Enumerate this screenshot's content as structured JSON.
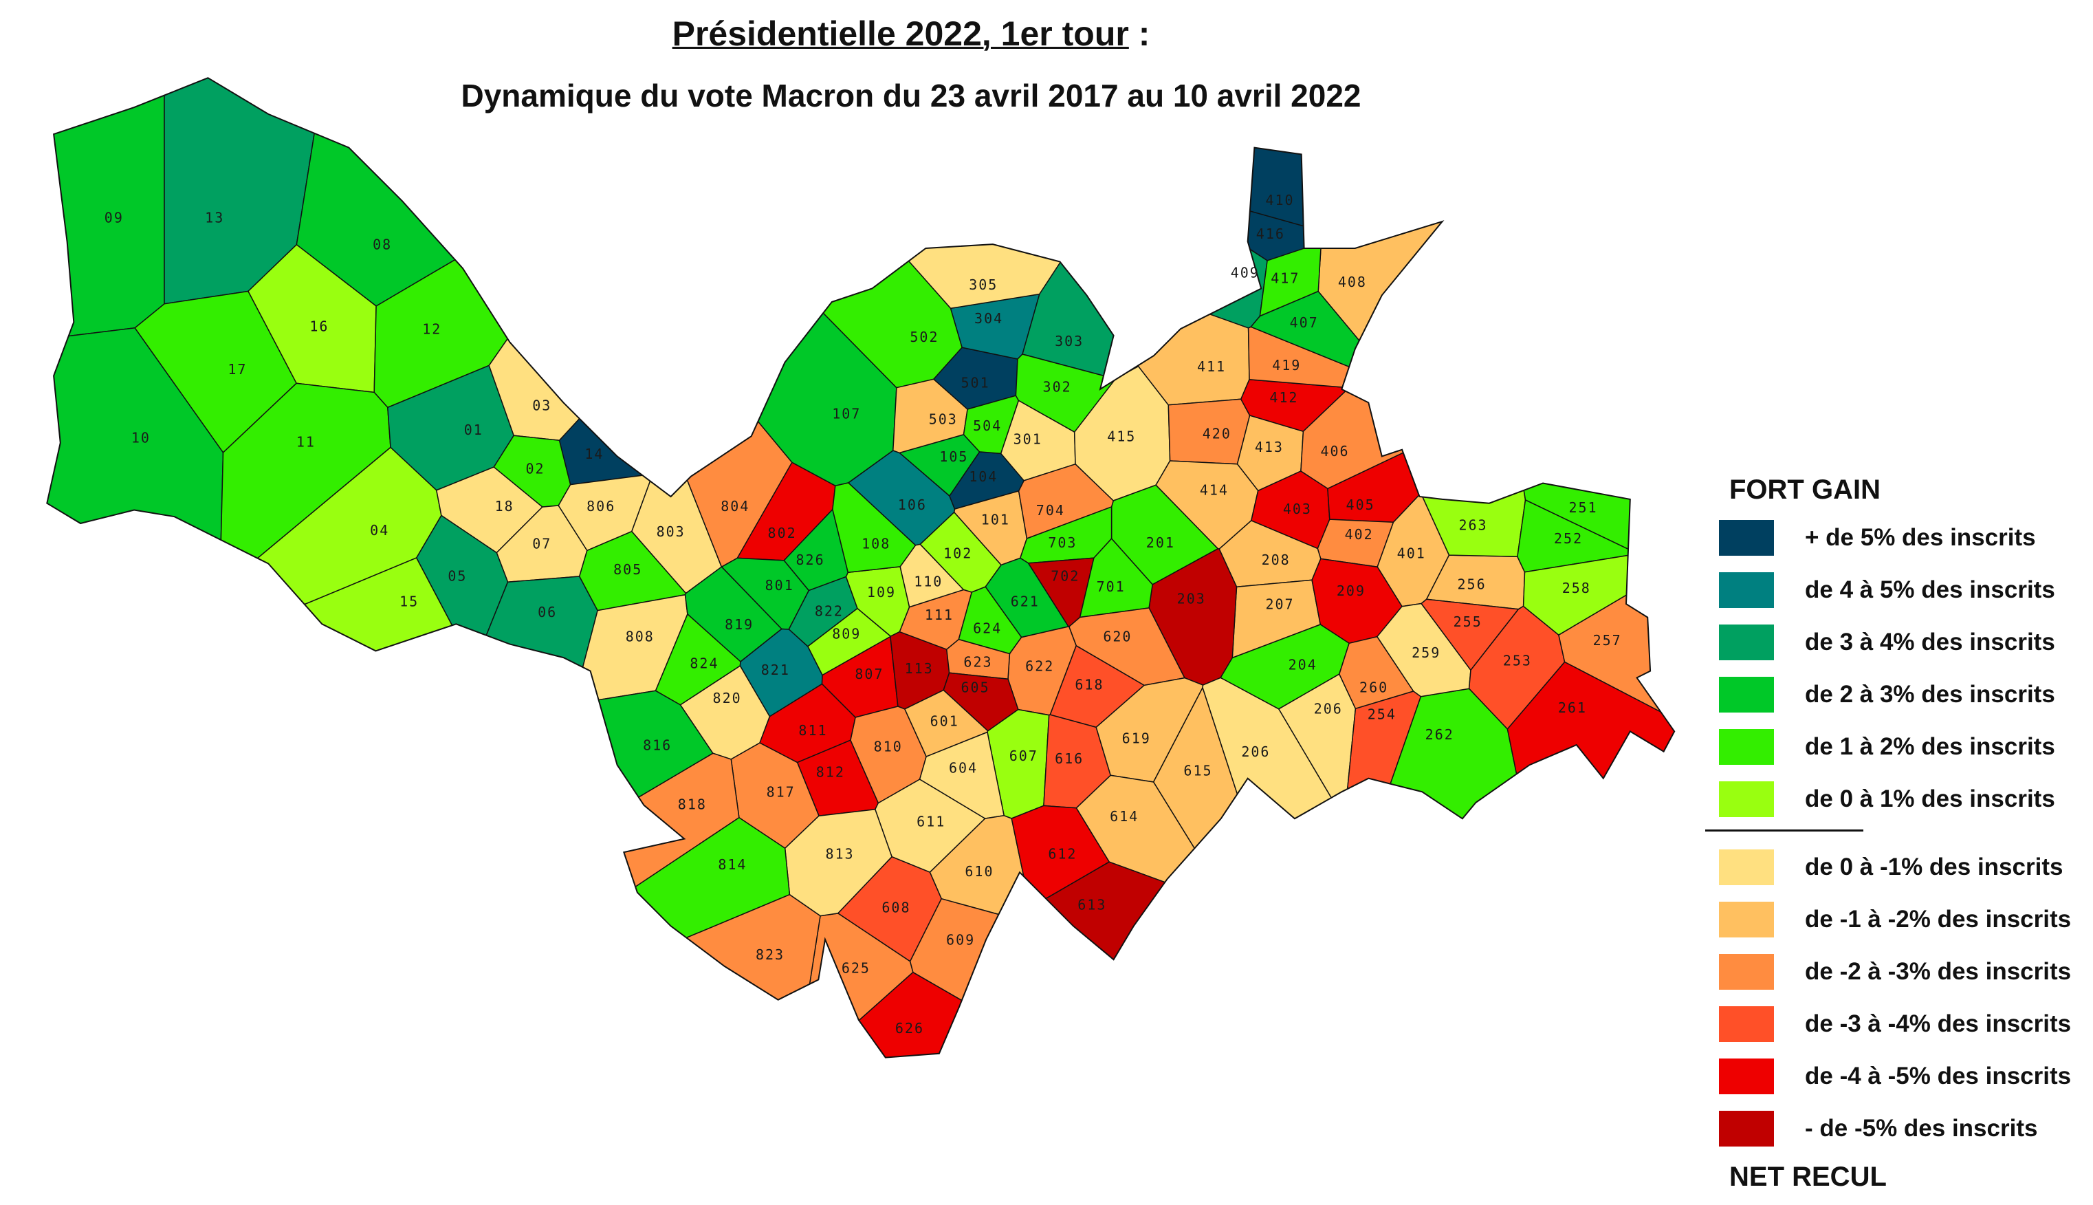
{
  "title": {
    "main": "Présidentielle 2022, 1er tour",
    "suffix": " :"
  },
  "subtitle": "Dynamique du vote Macron  du 23 avril 2017 au 10 avril 2022",
  "legend": {
    "top_heading": "FORT GAIN",
    "bottom_heading": "NET RECUL",
    "gain_classes": [
      {
        "key": "c5",
        "label": "+ de 5% des inscrits",
        "color": "#004060"
      },
      {
        "key": "c4",
        "label": "de 4 à 5% des inscrits",
        "color": "#008080"
      },
      {
        "key": "c3",
        "label": "de 3 à 4% des inscrits",
        "color": "#00a060"
      },
      {
        "key": "c2",
        "label": "de 2 à 3% des inscrits",
        "color": "#00c828"
      },
      {
        "key": "c1",
        "label": "de 1 à 2% des inscrits",
        "color": "#33ee00"
      },
      {
        "key": "c0",
        "label": "de 0 à 1% des inscrits",
        "color": "#99ff10"
      }
    ],
    "loss_classes": [
      {
        "key": "m0",
        "label": "de 0 à -1% des inscrits",
        "color": "#ffe080"
      },
      {
        "key": "m1",
        "label": "de -1 à -2% des inscrits",
        "color": "#ffc060"
      },
      {
        "key": "m2",
        "label": "de -2 à -3% des inscrits",
        "color": "#ff8c40"
      },
      {
        "key": "m3",
        "label": "de -3 à -4% des inscrits",
        "color": "#ff5028"
      },
      {
        "key": "m4",
        "label": "de -4 à -5% des inscrits",
        "color": "#ee0000"
      },
      {
        "key": "m5",
        "label": "- de -5% des inscrits",
        "color": "#c00000"
      }
    ]
  },
  "precincts": [
    {
      "id": "09",
      "c": "c2"
    },
    {
      "id": "13",
      "c": "c3"
    },
    {
      "id": "08",
      "c": "c2"
    },
    {
      "id": "16",
      "c": "c0"
    },
    {
      "id": "12",
      "c": "c1"
    },
    {
      "id": "17",
      "c": "c1"
    },
    {
      "id": "10",
      "c": "c2"
    },
    {
      "id": "11",
      "c": "c1"
    },
    {
      "id": "01",
      "c": "c3"
    },
    {
      "id": "03",
      "c": "m0"
    },
    {
      "id": "14",
      "c": "c5"
    },
    {
      "id": "02",
      "c": "c1"
    },
    {
      "id": "04",
      "c": "c0"
    },
    {
      "id": "18",
      "c": "m0"
    },
    {
      "id": "07",
      "c": "m0"
    },
    {
      "id": "806",
      "c": "m0"
    },
    {
      "id": "05",
      "c": "c3"
    },
    {
      "id": "06",
      "c": "c3"
    },
    {
      "id": "15",
      "c": "c0"
    },
    {
      "id": "803",
      "c": "m0"
    },
    {
      "id": "805",
      "c": "c1"
    },
    {
      "id": "808",
      "c": "m0"
    },
    {
      "id": "804",
      "c": "m2"
    },
    {
      "id": "802",
      "c": "m4"
    },
    {
      "id": "826",
      "c": "c2"
    },
    {
      "id": "801",
      "c": "c2"
    },
    {
      "id": "819",
      "c": "c2"
    },
    {
      "id": "822",
      "c": "c3"
    },
    {
      "id": "809",
      "c": "c0"
    },
    {
      "id": "824",
      "c": "c1"
    },
    {
      "id": "821",
      "c": "c4"
    },
    {
      "id": "820",
      "c": "m0"
    },
    {
      "id": "807",
      "c": "m4"
    },
    {
      "id": "113",
      "c": "m5"
    },
    {
      "id": "111",
      "c": "m2"
    },
    {
      "id": "110",
      "c": "m0"
    },
    {
      "id": "109",
      "c": "c0"
    },
    {
      "id": "108",
      "c": "c1"
    },
    {
      "id": "102",
      "c": "c0"
    },
    {
      "id": "106",
      "c": "c4"
    },
    {
      "id": "104",
      "c": "c5"
    },
    {
      "id": "105",
      "c": "c2"
    },
    {
      "id": "101",
      "c": "m1"
    },
    {
      "id": "107",
      "c": "c2"
    },
    {
      "id": "502",
      "c": "c1"
    },
    {
      "id": "503",
      "c": "m1"
    },
    {
      "id": "501",
      "c": "c5"
    },
    {
      "id": "504",
      "c": "c1"
    },
    {
      "id": "304",
      "c": "c4"
    },
    {
      "id": "305",
      "c": "m0"
    },
    {
      "id": "303",
      "c": "c3"
    },
    {
      "id": "302",
      "c": "c1"
    },
    {
      "id": "301",
      "c": "m0"
    },
    {
      "id": "415",
      "c": "m0"
    },
    {
      "id": "411",
      "c": "m1"
    },
    {
      "id": "420",
      "c": "m2"
    },
    {
      "id": "413",
      "c": "m1"
    },
    {
      "id": "414",
      "c": "m1"
    },
    {
      "id": "412",
      "c": "m4"
    },
    {
      "id": "419",
      "c": "m2"
    },
    {
      "id": "407",
      "c": "c2"
    },
    {
      "id": "408",
      "c": "m1"
    },
    {
      "id": "409",
      "c": "c3"
    },
    {
      "id": "417",
      "c": "c1"
    },
    {
      "id": "416",
      "c": "c5"
    },
    {
      "id": "410",
      "c": "c5"
    },
    {
      "id": "406",
      "c": "m2"
    },
    {
      "id": "403",
      "c": "m4"
    },
    {
      "id": "405",
      "c": "m4"
    },
    {
      "id": "402",
      "c": "m2"
    },
    {
      "id": "401",
      "c": "m1"
    },
    {
      "id": "208",
      "c": "m1"
    },
    {
      "id": "207",
      "c": "m1"
    },
    {
      "id": "209",
      "c": "m4"
    },
    {
      "id": "201",
      "c": "c1"
    },
    {
      "id": "203",
      "c": "m5"
    },
    {
      "id": "704",
      "c": "m2"
    },
    {
      "id": "703",
      "c": "c1"
    },
    {
      "id": "702",
      "c": "m5"
    },
    {
      "id": "701",
      "c": "c1"
    },
    {
      "id": "621",
      "c": "c2"
    },
    {
      "id": "624",
      "c": "c1"
    },
    {
      "id": "620",
      "c": "m2"
    },
    {
      "id": "622",
      "c": "m2"
    },
    {
      "id": "623",
      "c": "m2"
    },
    {
      "id": "605",
      "c": "m5"
    },
    {
      "id": "618",
      "c": "m3"
    },
    {
      "id": "601",
      "c": "m1"
    },
    {
      "id": "810",
      "c": "m2"
    },
    {
      "id": "811",
      "c": "m4"
    },
    {
      "id": "812",
      "c": "m4"
    },
    {
      "id": "817",
      "c": "m2"
    },
    {
      "id": "818",
      "c": "m2"
    },
    {
      "id": "816",
      "c": "c2"
    },
    {
      "id": "607",
      "c": "c0"
    },
    {
      "id": "616",
      "c": "m3"
    },
    {
      "id": "619",
      "c": "m1"
    },
    {
      "id": "615",
      "c": "m1"
    },
    {
      "id": "604",
      "c": "m0"
    },
    {
      "id": "614",
      "c": "m1"
    },
    {
      "id": "206",
      "c": "m0"
    },
    {
      "id": "204",
      "c": "c1"
    },
    {
      "id": "206",
      "c": "m0"
    },
    {
      "id": "260",
      "c": "m2"
    },
    {
      "id": "254",
      "c": "m3"
    },
    {
      "id": "262",
      "c": "c1"
    },
    {
      "id": "259",
      "c": "m0"
    },
    {
      "id": "256",
      "c": "m1"
    },
    {
      "id": "255",
      "c": "m3"
    },
    {
      "id": "253",
      "c": "m3"
    },
    {
      "id": "257",
      "c": "m2"
    },
    {
      "id": "261",
      "c": "m4"
    },
    {
      "id": "263",
      "c": "c0"
    },
    {
      "id": "251",
      "c": "c1"
    },
    {
      "id": "252",
      "c": "c1"
    },
    {
      "id": "258",
      "c": "c0"
    },
    {
      "id": "611",
      "c": "m0"
    },
    {
      "id": "610",
      "c": "m1"
    },
    {
      "id": "612",
      "c": "m4"
    },
    {
      "id": "613",
      "c": "m5"
    },
    {
      "id": "608",
      "c": "m3"
    },
    {
      "id": "609",
      "c": "m2"
    },
    {
      "id": "625",
      "c": "m2"
    },
    {
      "id": "626",
      "c": "m4"
    },
    {
      "id": "813",
      "c": "m0"
    },
    {
      "id": "814",
      "c": "c1"
    },
    {
      "id": "823",
      "c": "m2"
    }
  ]
}
